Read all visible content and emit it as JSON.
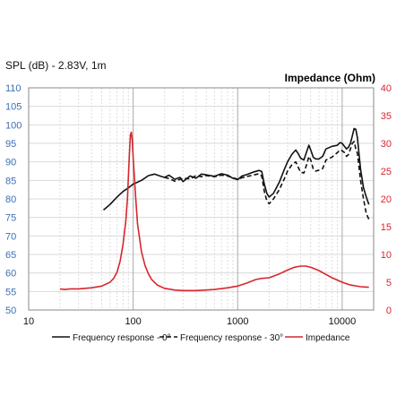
{
  "chart_data": {
    "type": "line",
    "x_scale": "log",
    "xlim": [
      10,
      20000
    ],
    "grid": true,
    "legend_position": "bottom",
    "title_left": "SPL (dB) - 2.83V, 1m",
    "title_right": "Impedance (Ohm)",
    "left_axis": {
      "range": [
        50,
        110
      ],
      "ticks": [
        "110",
        "105",
        "100",
        "95",
        "90",
        "85",
        "80",
        "75",
        "70",
        "65",
        "60",
        "55",
        "50"
      ],
      "color": "#3a6fb5"
    },
    "right_axis": {
      "range": [
        0,
        40
      ],
      "ticks": [
        "40",
        "35",
        "30",
        "25",
        "20",
        "15",
        "10",
        "5",
        "0"
      ],
      "color": "#d7262e"
    },
    "x_ticks": [
      "10",
      "100",
      "1000",
      "10000"
    ],
    "series": [
      {
        "name": "Frequency response - 0°",
        "axis": "left",
        "color": "#111111",
        "dash": "",
        "points": [
          [
            52,
            77
          ],
          [
            60,
            78.5
          ],
          [
            70,
            80.5
          ],
          [
            80,
            82
          ],
          [
            90,
            83
          ],
          [
            100,
            84
          ],
          [
            120,
            85
          ],
          [
            140,
            86.3
          ],
          [
            160,
            86.7
          ],
          [
            180,
            86.2
          ],
          [
            200,
            85.8
          ],
          [
            220,
            86.4
          ],
          [
            250,
            85.3
          ],
          [
            280,
            85.8
          ],
          [
            300,
            84.7
          ],
          [
            350,
            86.2
          ],
          [
            400,
            85.6
          ],
          [
            450,
            86.7
          ],
          [
            500,
            86.5
          ],
          [
            600,
            86.1
          ],
          [
            700,
            86.8
          ],
          [
            800,
            86.4
          ],
          [
            900,
            85.6
          ],
          [
            1000,
            85.2
          ],
          [
            1100,
            86.2
          ],
          [
            1200,
            86.5
          ],
          [
            1400,
            87.2
          ],
          [
            1600,
            87.7
          ],
          [
            1700,
            87.4
          ],
          [
            1800,
            84
          ],
          [
            1900,
            81.5
          ],
          [
            2000,
            80.5
          ],
          [
            2200,
            81.5
          ],
          [
            2500,
            84.5
          ],
          [
            2800,
            88
          ],
          [
            3000,
            90
          ],
          [
            3300,
            92
          ],
          [
            3600,
            93.2
          ],
          [
            3800,
            92.2
          ],
          [
            4000,
            91
          ],
          [
            4300,
            90.5
          ],
          [
            4600,
            93
          ],
          [
            4800,
            94.5
          ],
          [
            5000,
            93.2
          ],
          [
            5300,
            91.2
          ],
          [
            5600,
            90.8
          ],
          [
            6000,
            90.8
          ],
          [
            6500,
            91.5
          ],
          [
            7000,
            93.5
          ],
          [
            8000,
            94.2
          ],
          [
            9000,
            94.5
          ],
          [
            9500,
            95.2
          ],
          [
            10000,
            95
          ],
          [
            10500,
            94.2
          ],
          [
            11000,
            93.5
          ],
          [
            11500,
            94
          ],
          [
            12000,
            95
          ],
          [
            12500,
            97
          ],
          [
            13000,
            99
          ],
          [
            13500,
            98.8
          ],
          [
            14000,
            96.5
          ],
          [
            15000,
            88
          ],
          [
            16000,
            83
          ],
          [
            17000,
            80.5
          ],
          [
            18000,
            78.5
          ]
        ]
      },
      {
        "name": "Frequency response - 30°",
        "axis": "left",
        "color": "#111111",
        "dash": "5,3",
        "points": [
          [
            200,
            85.8
          ],
          [
            220,
            85.5
          ],
          [
            250,
            84.8
          ],
          [
            300,
            85.6
          ],
          [
            350,
            85.4
          ],
          [
            400,
            86.3
          ],
          [
            450,
            86
          ],
          [
            500,
            86.3
          ],
          [
            600,
            86
          ],
          [
            700,
            86.4
          ],
          [
            800,
            86.2
          ],
          [
            900,
            85.7
          ],
          [
            1000,
            85.3
          ],
          [
            1100,
            85.7
          ],
          [
            1200,
            86
          ],
          [
            1400,
            86.4
          ],
          [
            1600,
            86.8
          ],
          [
            1700,
            86.2
          ],
          [
            1800,
            82
          ],
          [
            1900,
            79.5
          ],
          [
            2000,
            78.7
          ],
          [
            2200,
            80
          ],
          [
            2500,
            82.5
          ],
          [
            2800,
            85.5
          ],
          [
            3000,
            87.5
          ],
          [
            3300,
            89.2
          ],
          [
            3600,
            90
          ],
          [
            3800,
            88.5
          ],
          [
            4000,
            87.2
          ],
          [
            4300,
            87
          ],
          [
            4600,
            89.5
          ],
          [
            4800,
            91.5
          ],
          [
            5000,
            90.5
          ],
          [
            5300,
            88
          ],
          [
            5600,
            87.5
          ],
          [
            6000,
            87.8
          ],
          [
            6500,
            88.2
          ],
          [
            7000,
            90.5
          ],
          [
            8000,
            91.3
          ],
          [
            9000,
            92.5
          ],
          [
            9500,
            93.2
          ],
          [
            10000,
            93
          ],
          [
            10500,
            92.5
          ],
          [
            11000,
            91.5
          ],
          [
            11500,
            92
          ],
          [
            12000,
            93.5
          ],
          [
            12500,
            95
          ],
          [
            13000,
            95.5
          ],
          [
            13500,
            93.5
          ],
          [
            14000,
            92.3
          ],
          [
            15000,
            85
          ],
          [
            16000,
            80
          ],
          [
            17000,
            76
          ],
          [
            18000,
            74.5
          ]
        ]
      },
      {
        "name": "Impedance",
        "axis": "right",
        "color": "#d7262e",
        "dash": "",
        "points": [
          [
            20,
            3.8
          ],
          [
            22,
            3.7
          ],
          [
            25,
            3.8
          ],
          [
            30,
            3.8
          ],
          [
            40,
            4
          ],
          [
            50,
            4.3
          ],
          [
            60,
            5
          ],
          [
            65,
            5.7
          ],
          [
            70,
            6.8
          ],
          [
            75,
            8.8
          ],
          [
            80,
            11.8
          ],
          [
            85,
            16
          ],
          [
            88,
            20
          ],
          [
            90,
            24
          ],
          [
            92,
            28
          ],
          [
            94,
            31.5
          ],
          [
            96,
            32
          ],
          [
            98,
            30.5
          ],
          [
            100,
            27.5
          ],
          [
            105,
            21
          ],
          [
            110,
            15.5
          ],
          [
            120,
            10.5
          ],
          [
            130,
            8
          ],
          [
            140,
            6.5
          ],
          [
            150,
            5.5
          ],
          [
            170,
            4.5
          ],
          [
            200,
            3.9
          ],
          [
            250,
            3.6
          ],
          [
            300,
            3.5
          ],
          [
            400,
            3.5
          ],
          [
            500,
            3.6
          ],
          [
            600,
            3.7
          ],
          [
            800,
            4
          ],
          [
            1000,
            4.3
          ],
          [
            1200,
            4.8
          ],
          [
            1500,
            5.5
          ],
          [
            1700,
            5.7
          ],
          [
            2000,
            5.8
          ],
          [
            2500,
            6.5
          ],
          [
            3000,
            7.2
          ],
          [
            3500,
            7.7
          ],
          [
            4000,
            7.9
          ],
          [
            4500,
            7.9
          ],
          [
            5000,
            7.7
          ],
          [
            6000,
            7.1
          ],
          [
            7000,
            6.4
          ],
          [
            8000,
            5.8
          ],
          [
            10000,
            5
          ],
          [
            12000,
            4.5
          ],
          [
            15000,
            4.2
          ],
          [
            18000,
            4.1
          ]
        ]
      }
    ]
  }
}
